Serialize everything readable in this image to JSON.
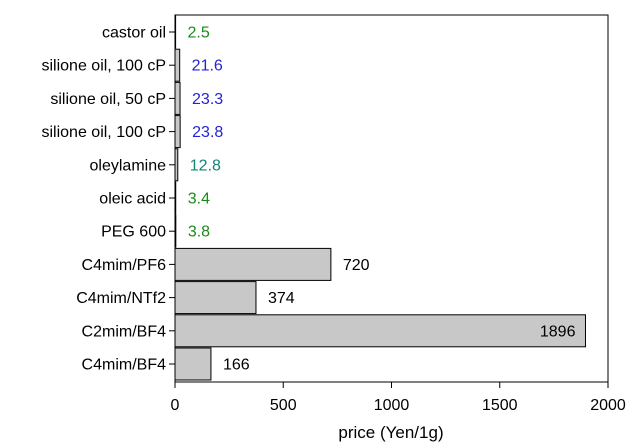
{
  "chart_data": {
    "type": "bar",
    "orientation": "horizontal",
    "title": "",
    "xlabel": "price (Yen/1g)",
    "ylabel": "",
    "xlim": [
      0,
      2000
    ],
    "xticks": [
      0,
      500,
      1000,
      1500,
      2000
    ],
    "grid": false,
    "categories": [
      "castor oil",
      "silione oil, 100 cP",
      "silione oil, 50 cP",
      "silione oil, 100 cP",
      "oleylamine",
      "oleic acid",
      "PEG 600",
      "C4mim/PF6",
      "C4mim/NTf2",
      "C2mim/BF4",
      "C4mim/BF4"
    ],
    "values": [
      2.5,
      21.6,
      23.3,
      23.8,
      12.8,
      3.4,
      3.8,
      720,
      374,
      1896,
      166
    ],
    "value_labels": [
      "2.5",
      "21.6",
      "23.3",
      "23.8",
      "12.8",
      "3.4",
      "3.8",
      "720",
      "374",
      "1896",
      "166"
    ],
    "label_colors": [
      "#1a8a1a",
      "#2424d4",
      "#2424d4",
      "#2424d4",
      "#14827a",
      "#1a8a1a",
      "#1a8a1a",
      "#000000",
      "#000000",
      "#000000",
      "#000000"
    ],
    "bar_color": "#c8c8c8",
    "bar_edge_color": "#000000"
  }
}
